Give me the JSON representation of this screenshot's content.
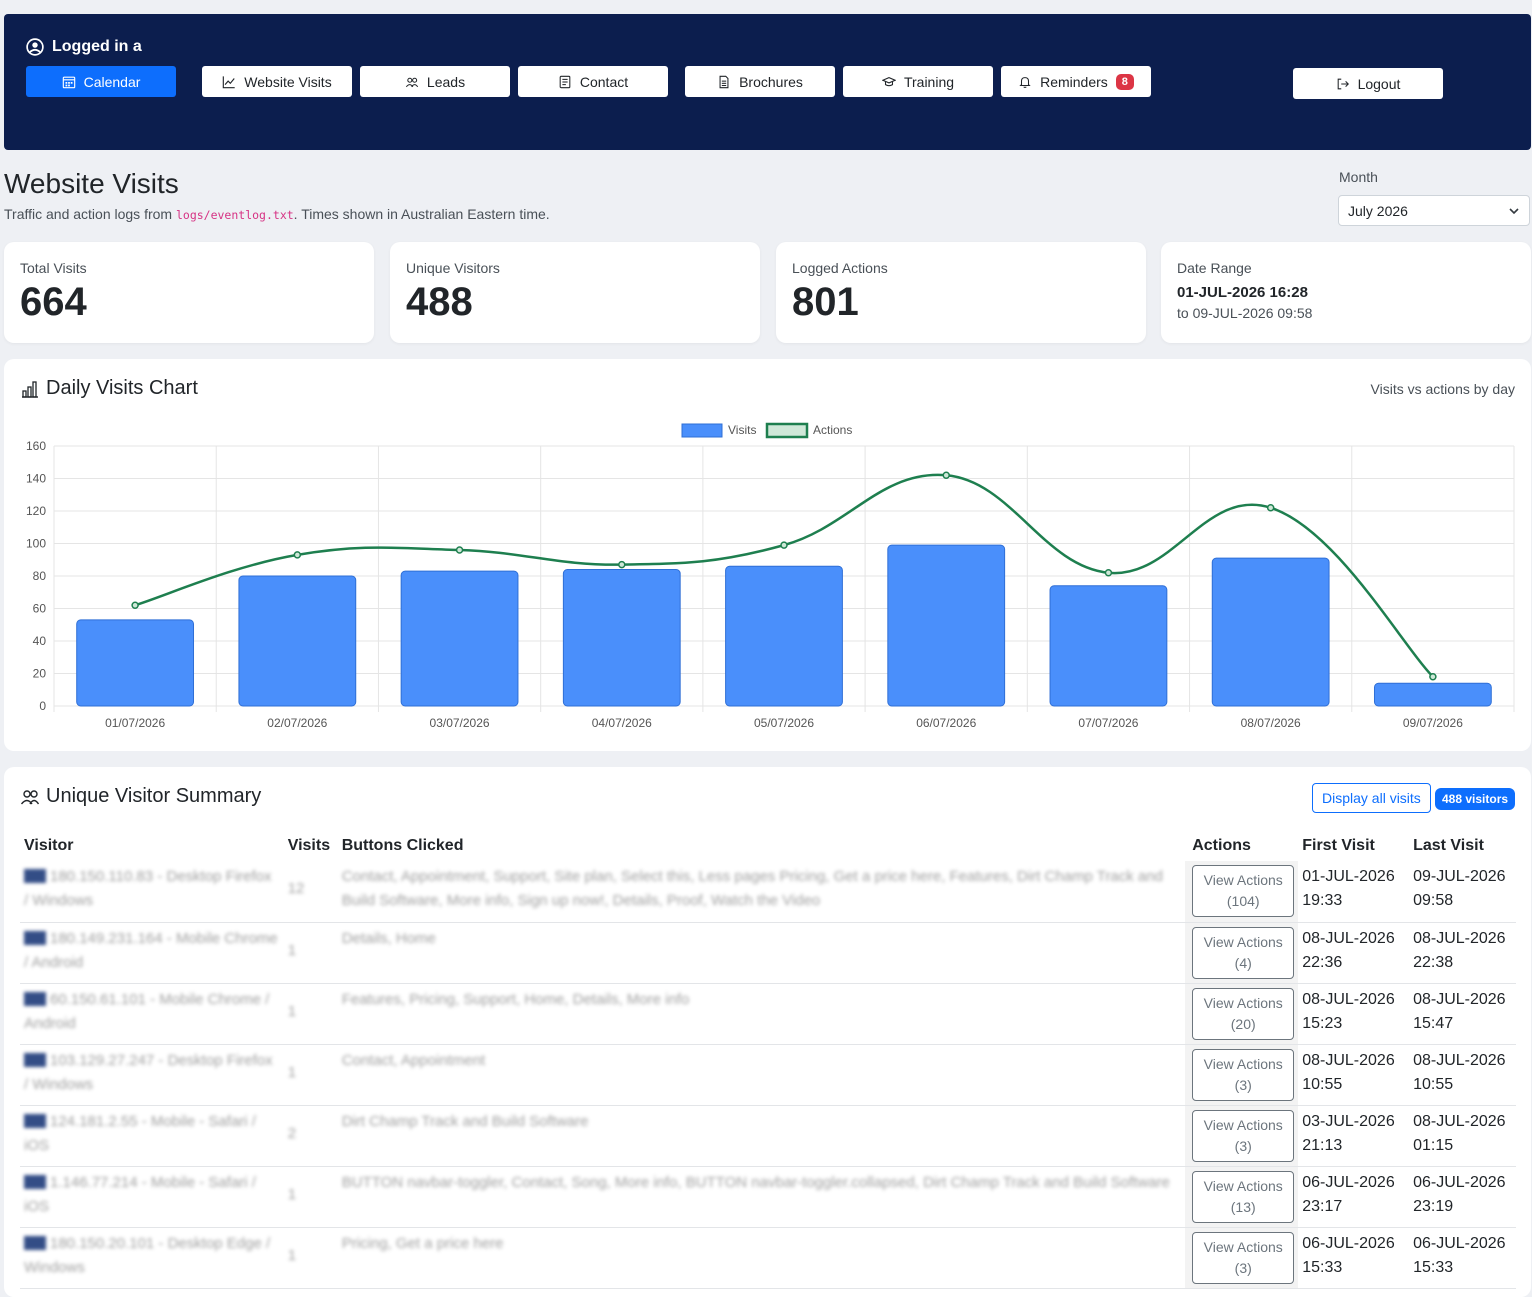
{
  "header": {
    "user": "Logged in a",
    "nav": [
      {
        "label": "Calendar",
        "icon": "calendar-icon",
        "active": true
      },
      {
        "label": "Website Visits",
        "icon": "chart-line-icon"
      },
      {
        "label": "Leads",
        "icon": "people-icon"
      },
      {
        "label": "Contact",
        "icon": "contact-card-icon"
      },
      {
        "label": "Brochures",
        "icon": "document-icon"
      },
      {
        "label": "Training",
        "icon": "graduation-cap-icon"
      },
      {
        "label": "Reminders",
        "icon": "bell-icon",
        "badge": "8"
      }
    ],
    "logout": "Logout"
  },
  "page": {
    "title": "Website Visits",
    "subtitle_pre": "Traffic and action logs from ",
    "subtitle_code": "logs/eventlog.txt",
    "subtitle_post": ". Times shown in Australian Eastern time.",
    "month_label": "Month",
    "month_value": "July 2026"
  },
  "stats": {
    "total_visits_label": "Total Visits",
    "total_visits": "664",
    "unique_label": "Unique Visitors",
    "unique": "488",
    "actions_label": "Logged Actions",
    "actions": "801",
    "range_label": "Date Range",
    "range_from": "01-JUL-2026 16:28",
    "range_to": "to 09-JUL-2026 09:58"
  },
  "chart": {
    "title": "Daily Visits Chart",
    "subtitle": "Visits vs actions by day"
  },
  "chart_data": {
    "type": "bar",
    "categories": [
      "01/07/2026",
      "02/07/2026",
      "03/07/2026",
      "04/07/2026",
      "05/07/2026",
      "06/07/2026",
      "07/07/2026",
      "08/07/2026",
      "09/07/2026"
    ],
    "series": [
      {
        "name": "Visits",
        "type": "bar",
        "color": "#4a8ffb",
        "values": [
          53,
          80,
          83,
          84,
          86,
          99,
          74,
          91,
          14
        ]
      },
      {
        "name": "Actions",
        "type": "line",
        "color": "#1e7f4f",
        "values": [
          62,
          93,
          96,
          87,
          99,
          142,
          82,
          122,
          18
        ]
      }
    ],
    "ylim": [
      0,
      160
    ],
    "yticks": [
      0,
      20,
      40,
      60,
      80,
      100,
      120,
      140,
      160
    ],
    "grid": true,
    "legend": "top-center"
  },
  "summary": {
    "title": "Unique Visitor Summary",
    "display_all": "Display all visits",
    "count_badge": "488 visitors",
    "columns": [
      "Visitor",
      "Visits",
      "Buttons Clicked",
      "Actions",
      "First Visit",
      "Last Visit"
    ],
    "rows": [
      {
        "visitor": "180.150.110.83 - Desktop Firefox / Windows",
        "visits": "12",
        "buttons": "Contact, Appointment, Support, Site plan, Select this, Less pages Pricing, Get a price here, Features, Dirt Champ Track and Build Software, More info, Sign up now!, Details, Proof, Watch the Video",
        "actions_line1": "View Actions",
        "actions_line2": "(104)",
        "first_d": "01-JUL-2026",
        "first_t": "19:33",
        "last_d": "09-JUL-2026",
        "last_t": "09:58"
      },
      {
        "visitor": "180.149.231.164 - Mobile Chrome / Android",
        "visits": "1",
        "buttons": "Details, Home",
        "actions_line1": "View Actions",
        "actions_line2": "(4)",
        "first_d": "08-JUL-2026",
        "first_t": "22:36",
        "last_d": "08-JUL-2026",
        "last_t": "22:38"
      },
      {
        "visitor": "60.150.61.101 - Mobile Chrome / Android",
        "visits": "1",
        "buttons": "Features, Pricing, Support, Home, Details, More info",
        "actions_line1": "View Actions",
        "actions_line2": "(20)",
        "first_d": "08-JUL-2026",
        "first_t": "15:23",
        "last_d": "08-JUL-2026",
        "last_t": "15:47"
      },
      {
        "visitor": "103.129.27.247 - Desktop Firefox / Windows",
        "visits": "1",
        "buttons": "Contact, Appointment",
        "actions_line1": "View Actions",
        "actions_line2": "(3)",
        "first_d": "08-JUL-2026",
        "first_t": "10:55",
        "last_d": "08-JUL-2026",
        "last_t": "10:55"
      },
      {
        "visitor": "124.181.2.55 - Mobile - Safari / iOS",
        "visits": "2",
        "buttons": "Dirt Champ Track and Build Software",
        "actions_line1": "View Actions",
        "actions_line2": "(3)",
        "first_d": "03-JUL-2026",
        "first_t": "21:13",
        "last_d": "08-JUL-2026",
        "last_t": "01:15"
      },
      {
        "visitor": "1.146.77.214 - Mobile - Safari / iOS",
        "visits": "1",
        "buttons": "BUTTON navbar-toggler, Contact, Song, More info, BUTTON navbar-toggler.collapsed, Dirt Champ Track and Build Software",
        "actions_line1": "View Actions",
        "actions_line2": "(13)",
        "first_d": "06-JUL-2026",
        "first_t": "23:17",
        "last_d": "06-JUL-2026",
        "last_t": "23:19"
      },
      {
        "visitor": "180.150.20.101 - Desktop Edge / Windows",
        "visits": "1",
        "buttons": "Pricing, Get a price here",
        "actions_line1": "View Actions",
        "actions_line2": "(3)",
        "first_d": "06-JUL-2026",
        "first_t": "15:33",
        "last_d": "06-JUL-2026",
        "last_t": "15:33"
      }
    ]
  }
}
